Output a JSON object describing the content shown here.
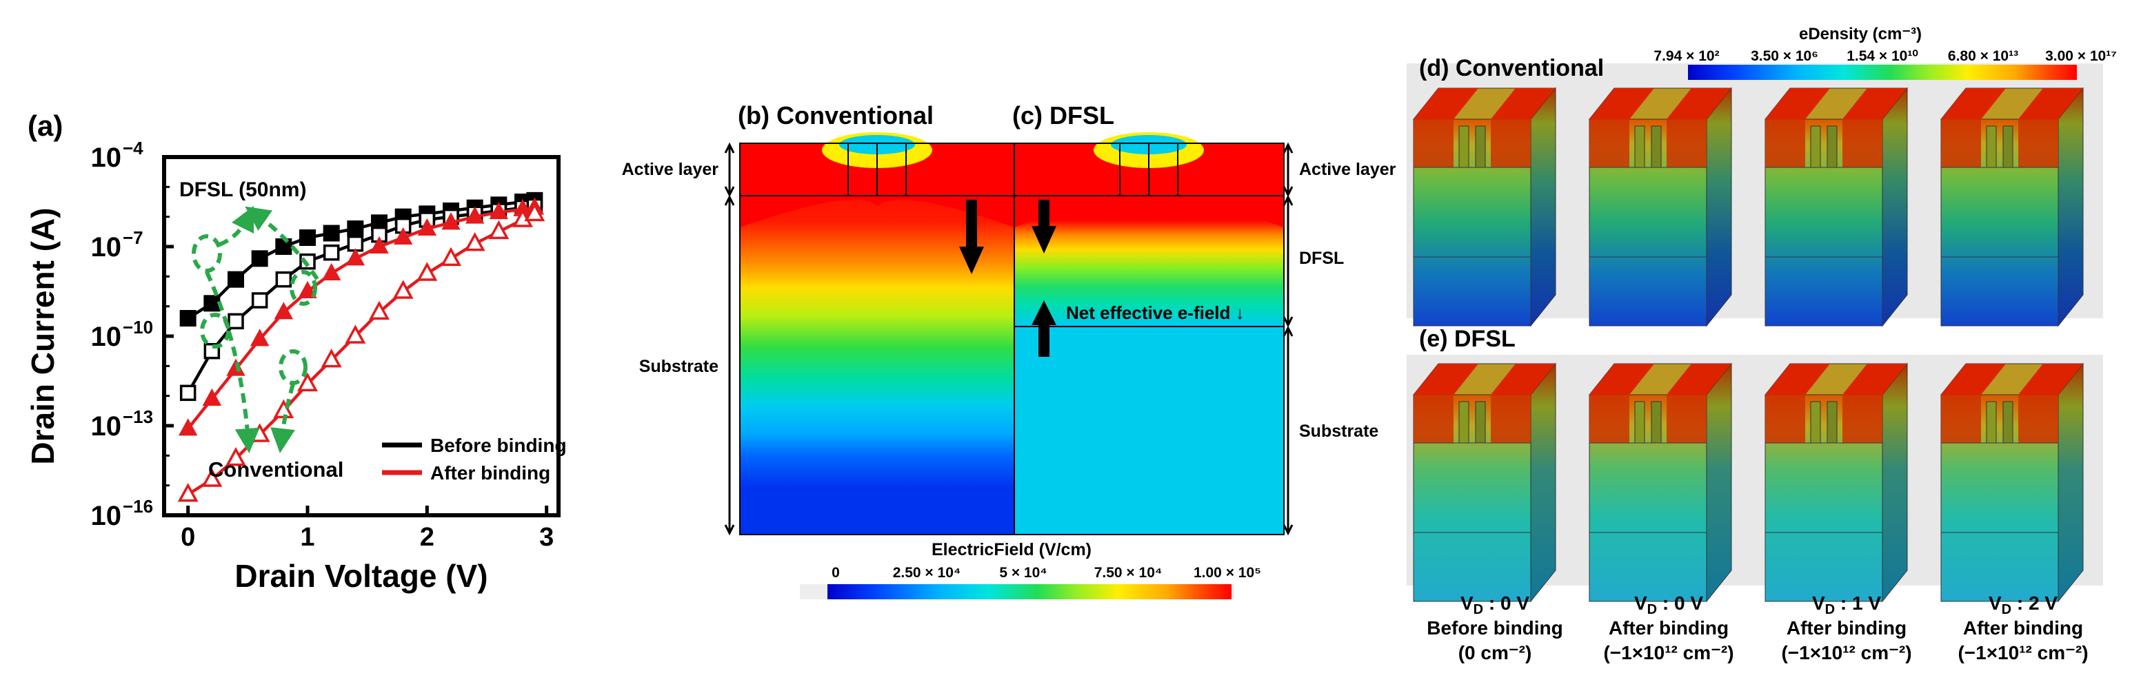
{
  "colors": {
    "before": "#000000",
    "after": "#e41a1c",
    "arrow_green": "#2ba84a",
    "field_scale": [
      "#0000cc",
      "#0044ff",
      "#00aaff",
      "#00e5e5",
      "#22dd66",
      "#99ee22",
      "#ffee00",
      "#ffaa00",
      "#ff4400",
      "#ff0000"
    ]
  },
  "panels": {
    "a": {
      "tag": "(a)",
      "note": "DFSL (50nm)",
      "conventional_label": "Conventional"
    },
    "b": {
      "tag": "(b) Conventional"
    },
    "c": {
      "tag": "(c) DFSL",
      "net_field_label": "Net effective e-field ↓"
    },
    "d": {
      "tag": "(d) Conventional"
    },
    "e": {
      "tag": "(e) DFSL"
    }
  },
  "layers": {
    "active": "Active layer",
    "substrate": "Substrate",
    "dfsl": "DFSL"
  },
  "efield_colorbar": {
    "title": "ElectricField (V/cm)",
    "ticks": [
      "0",
      "2.50 × 10⁴",
      "5 × 10⁴",
      "7.50 × 10⁴",
      "1.00 × 10⁵"
    ]
  },
  "edensity_colorbar": {
    "title": "eDensity (cm⁻³)",
    "ticks": [
      "7.94 × 10²",
      "3.50 × 10⁶",
      "1.54 × 10¹⁰",
      "6.80 × 10¹³",
      "3.00 × 10¹⁷"
    ]
  },
  "captions": [
    {
      "vd": "V",
      "sub": "D",
      "value": " : 0 V",
      "state": "Before binding",
      "charge": "(0 cm⁻²)"
    },
    {
      "vd": "V",
      "sub": "D",
      "value": " : 0 V",
      "state": "After binding",
      "charge": "(−1×10¹² cm⁻²)"
    },
    {
      "vd": "V",
      "sub": "D",
      "value": " : 1 V",
      "state": "After binding",
      "charge": "(−1×10¹² cm⁻²)"
    },
    {
      "vd": "V",
      "sub": "D",
      "value": " : 2 V",
      "state": "After binding",
      "charge": "(−1×10¹² cm⁻²)"
    }
  ],
  "chart_data": {
    "type": "line",
    "title": "",
    "xlabel": "Drain Voltage (V)",
    "ylabel": "Drain Current (A)",
    "xlim": [
      -0.2,
      3.1
    ],
    "ylim_log10": [
      -16,
      -4
    ],
    "y_scale": "log",
    "x_ticks": [
      0,
      1,
      2,
      3
    ],
    "x_tick_labels": [
      "0",
      "1",
      "2",
      "3"
    ],
    "y_ticks_log10": [
      -16,
      -13,
      -10,
      -7,
      -4
    ],
    "y_tick_labels": [
      {
        "base": "10",
        "exp": "−16"
      },
      {
        "base": "10",
        "exp": "−13"
      },
      {
        "base": "10",
        "exp": "−10"
      },
      {
        "base": "10",
        "exp": "−7"
      },
      {
        "base": "10",
        "exp": "−4"
      }
    ],
    "legend": [
      {
        "name": "Before binding",
        "color": "#000000"
      },
      {
        "name": "After binding",
        "color": "#e41a1c"
      }
    ],
    "legend_position": "bottom-right",
    "x": [
      0,
      0.2,
      0.4,
      0.6,
      0.8,
      1.0,
      1.2,
      1.4,
      1.6,
      1.8,
      2.0,
      2.2,
      2.4,
      2.6,
      2.8,
      2.9
    ],
    "series": [
      {
        "name": "DFSL before binding",
        "group": "Before binding",
        "marker": "filled-square",
        "color": "#000000",
        "log10_values": [
          -9.4,
          -8.9,
          -8.1,
          -7.4,
          -7.0,
          -6.7,
          -6.55,
          -6.4,
          -6.2,
          -6.0,
          -5.9,
          -5.8,
          -5.7,
          -5.6,
          -5.5,
          -5.45
        ]
      },
      {
        "name": "Conventional before binding",
        "group": "Before binding",
        "marker": "open-square",
        "color": "#000000",
        "log10_values": [
          -11.9,
          -10.5,
          -9.5,
          -8.8,
          -8.1,
          -7.5,
          -7.2,
          -6.9,
          -6.6,
          -6.3,
          -6.1,
          -6.0,
          -5.9,
          -5.8,
          -5.7,
          -5.65
        ]
      },
      {
        "name": "DFSL after binding",
        "group": "After binding",
        "marker": "filled-triangle",
        "color": "#e41a1c",
        "log10_values": [
          -13.1,
          -12.1,
          -11.1,
          -10.1,
          -9.2,
          -8.5,
          -7.9,
          -7.4,
          -7.0,
          -6.7,
          -6.4,
          -6.2,
          -6.0,
          -5.85,
          -5.75,
          -5.7
        ]
      },
      {
        "name": "Conventional after binding",
        "group": "After binding",
        "marker": "open-triangle",
        "color": "#e41a1c",
        "log10_values": [
          -15.3,
          -14.8,
          -14.1,
          -13.3,
          -12.5,
          -11.6,
          -10.8,
          -10.0,
          -9.2,
          -8.5,
          -7.9,
          -7.4,
          -6.9,
          -6.5,
          -6.1,
          -5.9
        ]
      }
    ]
  }
}
